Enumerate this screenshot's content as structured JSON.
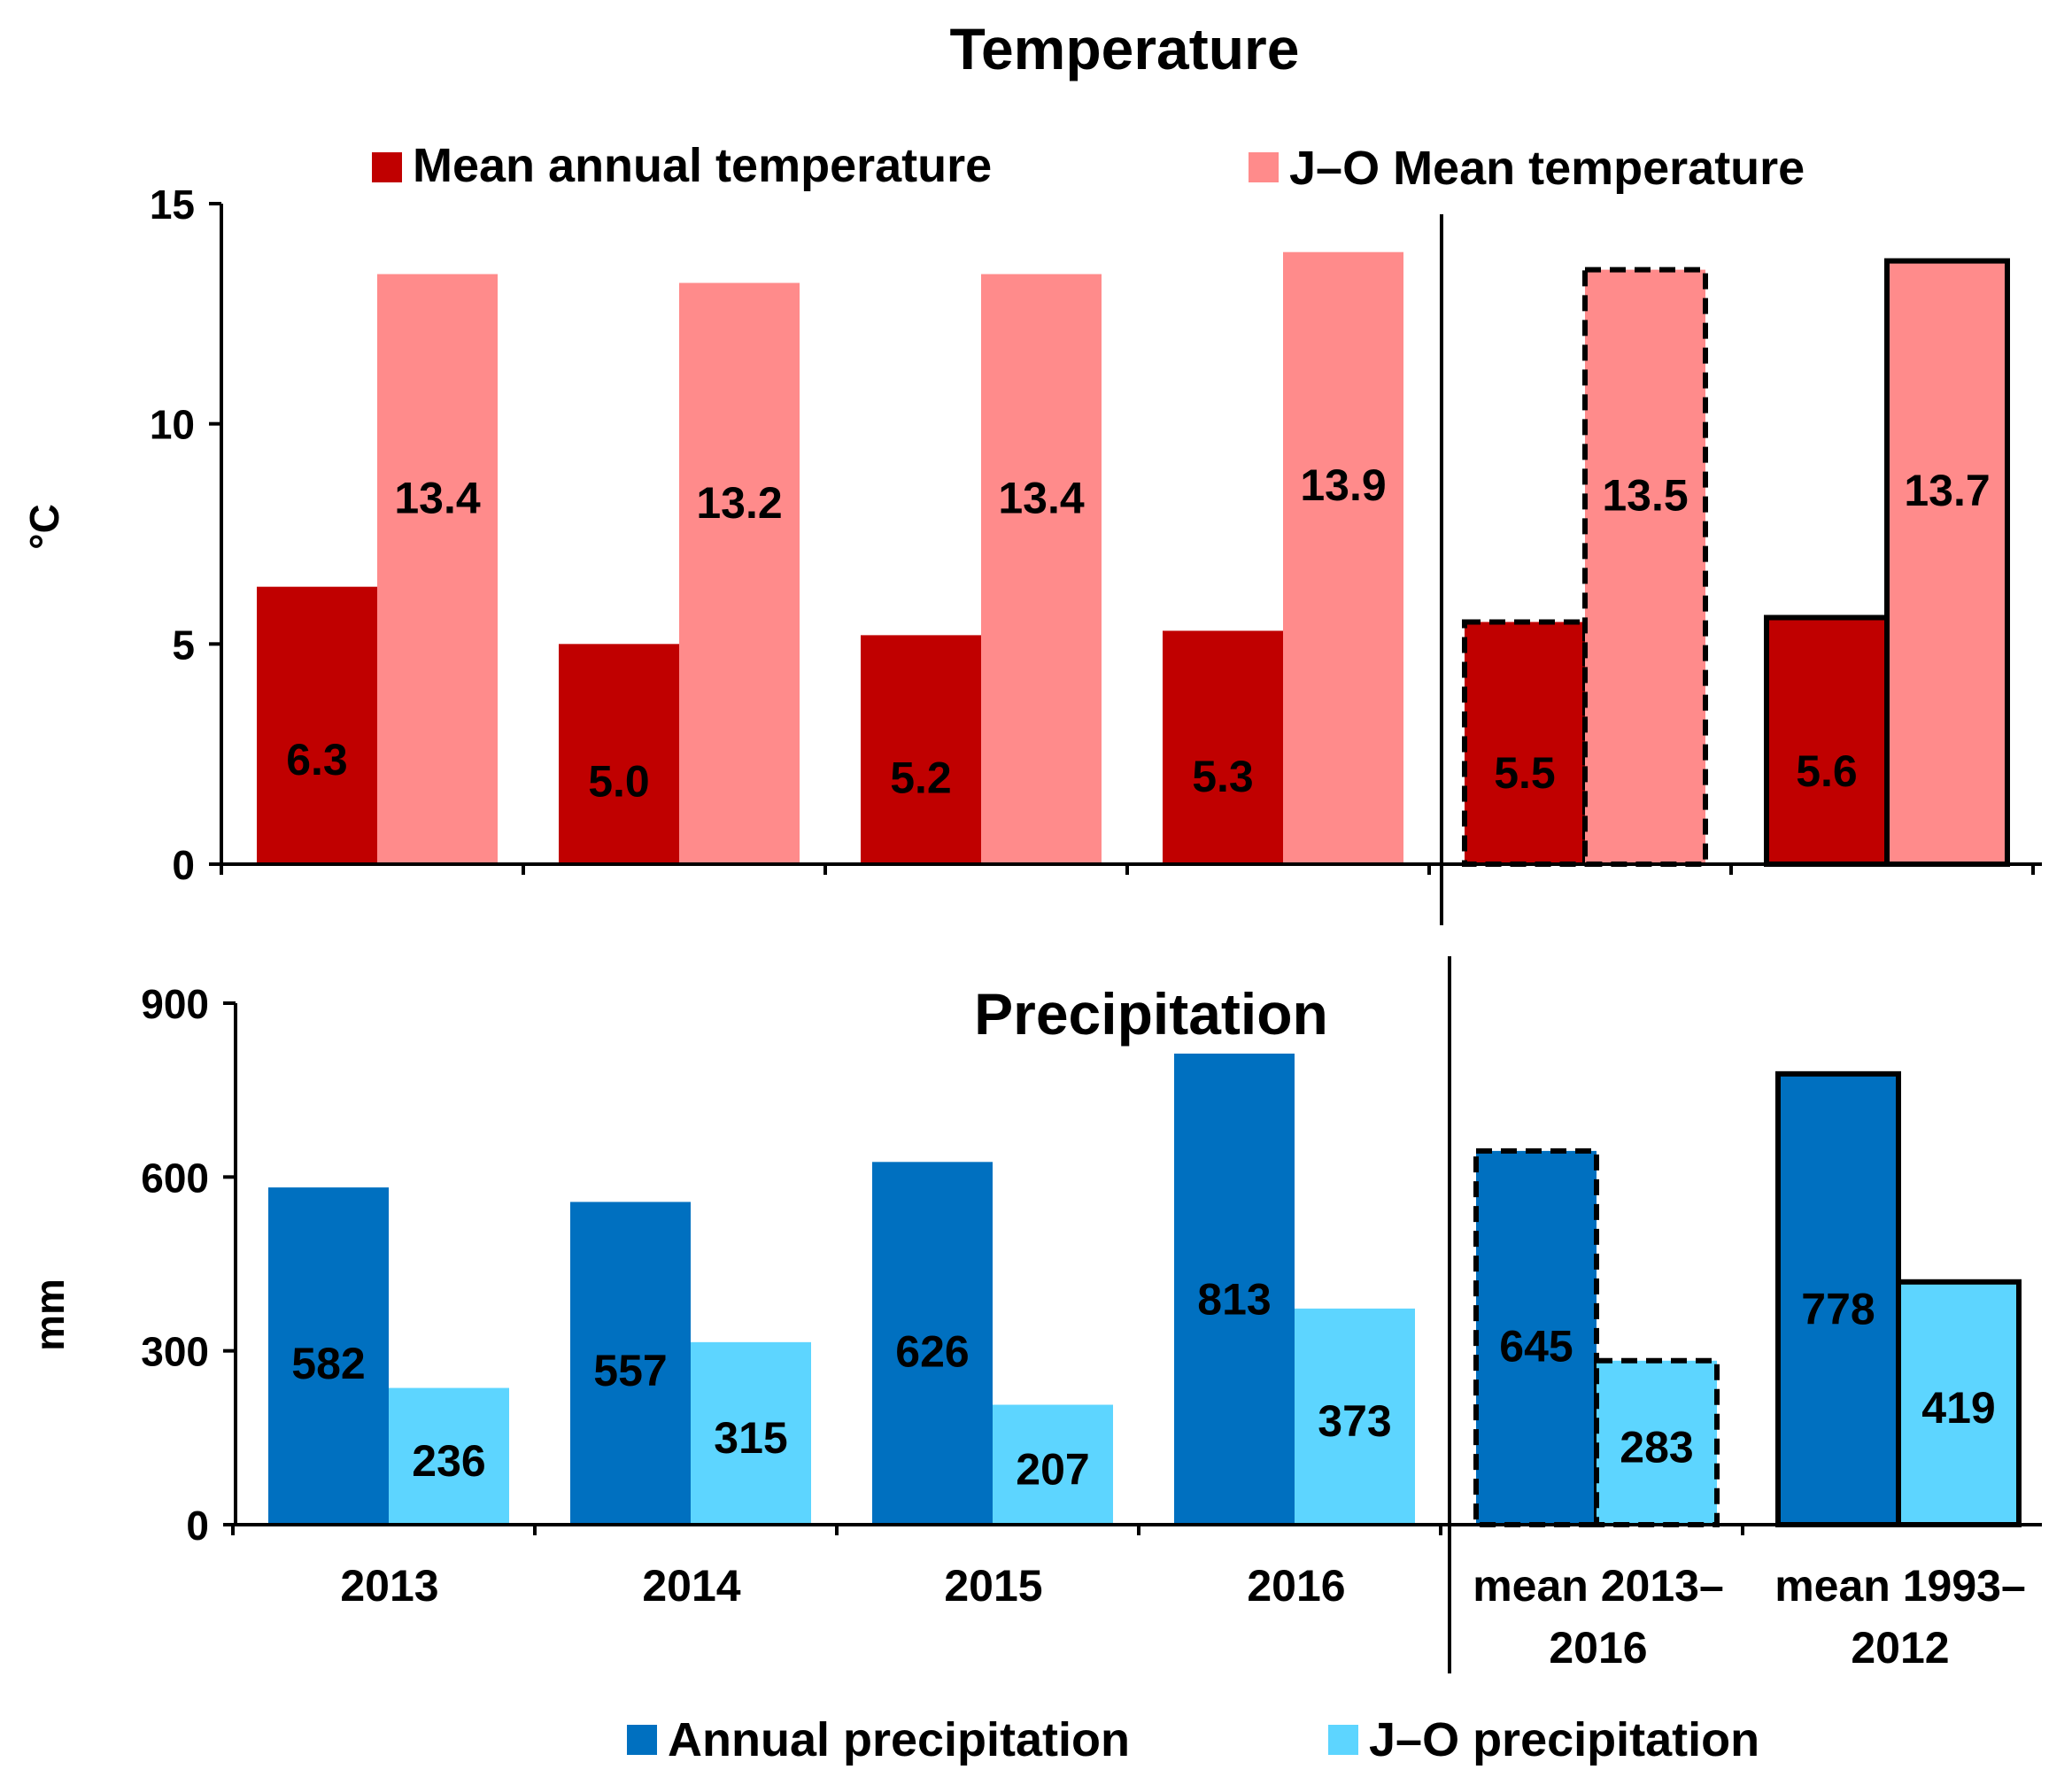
{
  "chart_data": [
    {
      "type": "bar",
      "title": "Temperature",
      "ylabel": "°C",
      "xlabel": "",
      "ylim": [
        0,
        15
      ],
      "yticks": [
        0,
        5,
        10,
        15
      ],
      "categories": [
        "2013",
        "2014",
        "2015",
        "2016",
        "mean 2013–2016",
        "mean 1993–2012"
      ],
      "series": [
        {
          "name": "Mean annual temperature",
          "color": "#C00000",
          "values": [
            6.3,
            5.0,
            5.2,
            5.3,
            5.5,
            5.6
          ],
          "labels": [
            "6.3",
            "5.0",
            "5.2",
            "5.3",
            "5.5",
            "5.6"
          ]
        },
        {
          "name": "J–O Mean temperature",
          "color": "#FF8B8B",
          "values": [
            13.4,
            13.2,
            13.4,
            13.9,
            13.5,
            13.7
          ],
          "labels": [
            "13.4",
            "13.2",
            "13.4",
            "13.9",
            "13.5",
            "13.7"
          ]
        }
      ],
      "outline_styles": [
        "none",
        "none",
        "none",
        "none",
        "dashed",
        "solid"
      ],
      "legend_position": "top"
    },
    {
      "type": "bar",
      "title": "Precipitation",
      "ylabel": "mm",
      "xlabel": "",
      "ylim": [
        0,
        900
      ],
      "yticks": [
        0,
        300,
        600,
        900
      ],
      "categories": [
        "2013",
        "2014",
        "2015",
        "2016",
        "mean 2013–2016",
        "mean 1993–2012"
      ],
      "category_lines": [
        [
          "2013"
        ],
        [
          "2014"
        ],
        [
          "2015"
        ],
        [
          "2016"
        ],
        [
          "mean 2013–",
          "2016"
        ],
        [
          "mean 1993–",
          "2012"
        ]
      ],
      "series": [
        {
          "name": "Annual precipitation",
          "color": "#0070C0",
          "values": [
            582,
            557,
            626,
            813,
            645,
            778
          ],
          "labels": [
            "582",
            "557",
            "626",
            "813",
            "645",
            "778"
          ]
        },
        {
          "name": "J–O precipitation",
          "color": "#5DD5FF",
          "values": [
            236,
            315,
            207,
            373,
            283,
            419
          ],
          "labels": [
            "236",
            "315",
            "207",
            "373",
            "283",
            "419"
          ]
        }
      ],
      "outline_styles": [
        "none",
        "none",
        "none",
        "none",
        "dashed",
        "solid"
      ],
      "legend_position": "bottom"
    }
  ]
}
